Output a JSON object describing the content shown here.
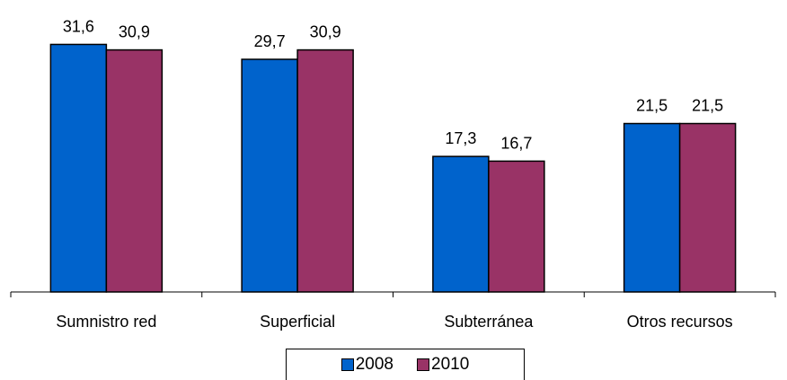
{
  "chart_data": {
    "type": "bar",
    "categories": [
      "Sumnistro red",
      "Superficial",
      "Subterránea",
      "Otros recursos"
    ],
    "series": [
      {
        "name": "2008",
        "values": [
          31.6,
          29.7,
          17.3,
          21.5
        ],
        "labels": [
          "31,6",
          "29,7",
          "17,3",
          "21,5"
        ],
        "color": "#0063cc"
      },
      {
        "name": "2010",
        "values": [
          30.9,
          30.9,
          16.7,
          21.5
        ],
        "labels": [
          "30,9",
          "30,9",
          "16,7",
          "21,5"
        ],
        "color": "#993366"
      }
    ],
    "ylim": [
      0,
      33
    ],
    "grid": false,
    "legend_position": "bottom"
  }
}
